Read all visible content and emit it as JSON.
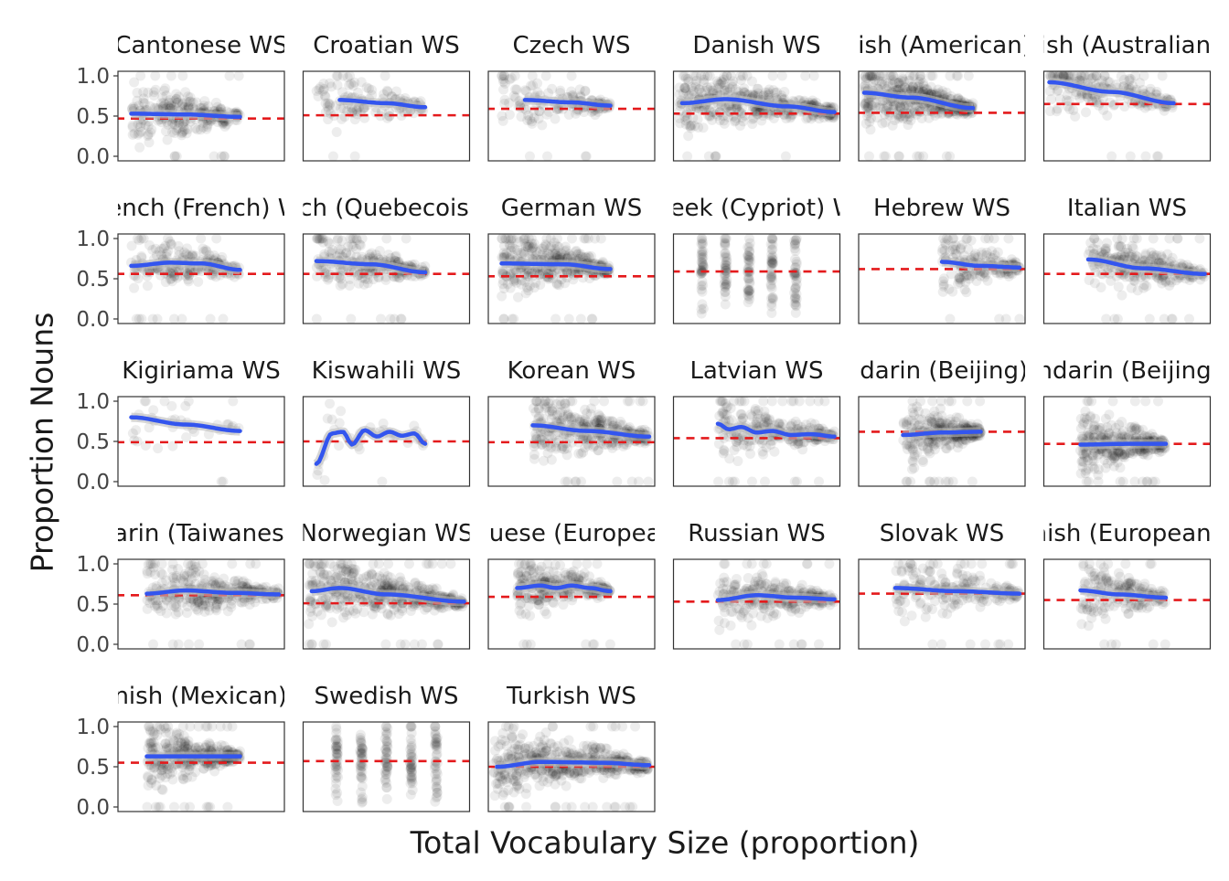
{
  "chart_data": {
    "type": "scatter",
    "xlabel": "Total Vocabulary Size (proportion)",
    "ylabel": "Proportion Nouns",
    "ylim": [
      0,
      1
    ],
    "xlim": [
      0,
      1
    ],
    "yticks": [
      "0.0",
      "0.5",
      "1.0"
    ],
    "grid": false,
    "legend": "none",
    "colors": {
      "smooth": "#3355ee",
      "baseline": "#e41a1c",
      "points": "#000000",
      "ribbon": "#bbbbbb"
    },
    "panels": [
      {
        "title": "Cantonese WS",
        "baseline": 0.47,
        "xrange": [
          0.05,
          0.75
        ],
        "density": 1.0,
        "smooth": [
          [
            0.05,
            0.53
          ],
          [
            0.4,
            0.52
          ],
          [
            0.75,
            0.49
          ]
        ]
      },
      {
        "title": "Croatian WS",
        "baseline": 0.51,
        "xrange": [
          0.05,
          0.75
        ],
        "density": 0.5,
        "smooth": [
          [
            0.2,
            0.7
          ],
          [
            0.5,
            0.66
          ],
          [
            0.75,
            0.61
          ]
        ]
      },
      {
        "title": "Czech WS",
        "baseline": 0.59,
        "xrange": [
          0.05,
          0.75
        ],
        "density": 0.6,
        "smooth": [
          [
            0.2,
            0.7
          ],
          [
            0.5,
            0.67
          ],
          [
            0.75,
            0.63
          ]
        ]
      },
      {
        "title": "Danish WS",
        "baseline": 0.53,
        "xrange": [
          0.0,
          1.0
        ],
        "density": 1.6,
        "smooth": [
          [
            0.02,
            0.66
          ],
          [
            0.3,
            0.71
          ],
          [
            0.7,
            0.62
          ],
          [
            1.0,
            0.55
          ]
        ]
      },
      {
        "title": "English (American) WS",
        "baseline": 0.54,
        "xrange": [
          0.0,
          0.7
        ],
        "density": 1.6,
        "smooth": [
          [
            0.0,
            0.79
          ],
          [
            0.3,
            0.73
          ],
          [
            0.7,
            0.6
          ]
        ]
      },
      {
        "title": "English (Australian) WS",
        "baseline": 0.65,
        "xrange": [
          0.0,
          0.8
        ],
        "density": 0.8,
        "smooth": [
          [
            0.0,
            0.92
          ],
          [
            0.4,
            0.8
          ],
          [
            0.8,
            0.66
          ]
        ]
      },
      {
        "title": "French (French) WS",
        "baseline": 0.56,
        "xrange": [
          0.05,
          0.75
        ],
        "density": 0.8,
        "smooth": [
          [
            0.05,
            0.66
          ],
          [
            0.3,
            0.7
          ],
          [
            0.5,
            0.69
          ],
          [
            0.75,
            0.61
          ]
        ]
      },
      {
        "title": "French (Quebecois) WS",
        "baseline": 0.56,
        "xrange": [
          0.05,
          0.75
        ],
        "density": 0.9,
        "smooth": [
          [
            0.05,
            0.72
          ],
          [
            0.4,
            0.68
          ],
          [
            0.75,
            0.58
          ]
        ]
      },
      {
        "title": "German WS",
        "baseline": 0.53,
        "xrange": [
          0.05,
          0.75
        ],
        "density": 1.4,
        "smooth": [
          [
            0.05,
            0.69
          ],
          [
            0.45,
            0.68
          ],
          [
            0.75,
            0.62
          ]
        ]
      },
      {
        "title": "Greek (Cypriot) WS",
        "baseline": 0.59,
        "xrange": [
          0.0,
          1.0
        ],
        "density": 0.0,
        "smooth": [],
        "columns": [
          0.15,
          0.3,
          0.45,
          0.6,
          0.75
        ]
      },
      {
        "title": "Hebrew WS",
        "baseline": 0.62,
        "xrange": [
          0.5,
          1.0
        ],
        "density": 0.7,
        "smooth": [
          [
            0.5,
            0.71
          ],
          [
            0.75,
            0.66
          ],
          [
            1.0,
            0.64
          ]
        ]
      },
      {
        "title": "Italian WS",
        "baseline": 0.56,
        "xrange": [
          0.25,
          1.0
        ],
        "density": 1.0,
        "smooth": [
          [
            0.25,
            0.74
          ],
          [
            0.6,
            0.63
          ],
          [
            1.0,
            0.56
          ]
        ]
      },
      {
        "title": "Kigiriama WS",
        "baseline": 0.49,
        "xrange": [
          0.05,
          0.75
        ],
        "density": 0.15,
        "smooth": [
          [
            0.05,
            0.8
          ],
          [
            0.4,
            0.71
          ],
          [
            0.75,
            0.63
          ]
        ]
      },
      {
        "title": "Kiswahili WS",
        "baseline": 0.5,
        "xrange": [
          0.05,
          0.75
        ],
        "density": 0.15,
        "smooth": [
          [
            0.05,
            0.22
          ],
          [
            0.15,
            0.6
          ],
          [
            0.22,
            0.62
          ],
          [
            0.28,
            0.46
          ],
          [
            0.36,
            0.64
          ],
          [
            0.44,
            0.56
          ],
          [
            0.52,
            0.62
          ],
          [
            0.6,
            0.57
          ],
          [
            0.68,
            0.6
          ],
          [
            0.75,
            0.47
          ]
        ]
      },
      {
        "title": "Korean WS",
        "baseline": 0.49,
        "xrange": [
          0.25,
          1.0
        ],
        "density": 1.3,
        "smooth": [
          [
            0.25,
            0.7
          ],
          [
            0.6,
            0.63
          ],
          [
            1.0,
            0.56
          ]
        ]
      },
      {
        "title": "Latvian WS",
        "baseline": 0.54,
        "xrange": [
          0.25,
          1.0
        ],
        "density": 1.0,
        "smooth": [
          [
            0.25,
            0.72
          ],
          [
            0.32,
            0.65
          ],
          [
            0.4,
            0.68
          ],
          [
            0.5,
            0.61
          ],
          [
            0.6,
            0.63
          ],
          [
            0.72,
            0.58
          ],
          [
            0.85,
            0.59
          ],
          [
            1.0,
            0.56
          ]
        ]
      },
      {
        "title": "Mandarin (Beijing) WS",
        "baseline": 0.62,
        "xrange": [
          0.25,
          0.75
        ],
        "density": 1.1,
        "smooth": [
          [
            0.25,
            0.58
          ],
          [
            0.5,
            0.61
          ],
          [
            0.75,
            0.62
          ]
        ]
      },
      {
        "title": "Mandarin (Beijing) IC",
        "baseline": 0.47,
        "xrange": [
          0.2,
          0.75
        ],
        "density": 1.2,
        "smooth": [
          [
            0.2,
            0.46
          ],
          [
            0.5,
            0.47
          ],
          [
            0.75,
            0.47
          ]
        ]
      },
      {
        "title": "Mandarin (Taiwanese) WS",
        "baseline": 0.61,
        "xrange": [
          0.15,
          1.0
        ],
        "density": 1.2,
        "smooth": [
          [
            0.15,
            0.63
          ],
          [
            0.4,
            0.67
          ],
          [
            0.7,
            0.64
          ],
          [
            1.0,
            0.62
          ]
        ]
      },
      {
        "title": "Norwegian WS",
        "baseline": 0.51,
        "xrange": [
          0.0,
          1.0
        ],
        "density": 1.7,
        "smooth": [
          [
            0.02,
            0.66
          ],
          [
            0.2,
            0.7
          ],
          [
            0.5,
            0.62
          ],
          [
            1.0,
            0.53
          ]
        ]
      },
      {
        "title": "Portuguese (European) WS",
        "baseline": 0.59,
        "xrange": [
          0.15,
          0.75
        ],
        "density": 1.0,
        "smooth": [
          [
            0.15,
            0.7
          ],
          [
            0.3,
            0.73
          ],
          [
            0.4,
            0.7
          ],
          [
            0.5,
            0.73
          ],
          [
            0.62,
            0.7
          ],
          [
            0.75,
            0.66
          ]
        ]
      },
      {
        "title": "Russian WS",
        "baseline": 0.53,
        "xrange": [
          0.25,
          1.0
        ],
        "density": 1.0,
        "smooth": [
          [
            0.25,
            0.55
          ],
          [
            0.5,
            0.61
          ],
          [
            0.75,
            0.58
          ],
          [
            1.0,
            0.56
          ]
        ]
      },
      {
        "title": "Slovak WS",
        "baseline": 0.63,
        "xrange": [
          0.2,
          1.0
        ],
        "density": 0.8,
        "smooth": [
          [
            0.2,
            0.7
          ],
          [
            0.6,
            0.66
          ],
          [
            1.0,
            0.63
          ]
        ]
      },
      {
        "title": "Spanish (European) WS",
        "baseline": 0.55,
        "xrange": [
          0.2,
          0.75
        ],
        "density": 0.7,
        "smooth": [
          [
            0.2,
            0.67
          ],
          [
            0.45,
            0.62
          ],
          [
            0.75,
            0.58
          ]
        ]
      },
      {
        "title": "Spanish (Mexican) WS",
        "baseline": 0.55,
        "xrange": [
          0.15,
          0.75
        ],
        "density": 1.3,
        "smooth": [
          [
            0.15,
            0.63
          ],
          [
            0.45,
            0.63
          ],
          [
            0.75,
            0.63
          ]
        ]
      },
      {
        "title": "Swedish WS",
        "baseline": 0.57,
        "xrange": [
          0.0,
          1.0
        ],
        "density": 0.0,
        "smooth": [],
        "columns": [
          0.18,
          0.34,
          0.5,
          0.66,
          0.82
        ]
      },
      {
        "title": "Turkish WS",
        "baseline": 0.5,
        "xrange": [
          0.0,
          1.0
        ],
        "density": 1.8,
        "smooth": [
          [
            0.02,
            0.5
          ],
          [
            0.3,
            0.56
          ],
          [
            0.7,
            0.55
          ],
          [
            1.0,
            0.52
          ]
        ]
      }
    ]
  }
}
